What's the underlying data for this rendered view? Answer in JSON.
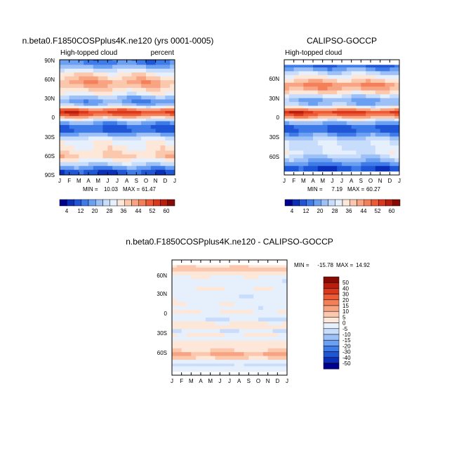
{
  "chart_data": [
    {
      "type": "heatmap",
      "title": "n.beta0.F1850COSPplus4K.ne120 (yrs 0001-0005)",
      "subtitle_left": "High-topped cloud",
      "subtitle_right": "percent",
      "x_ticks": [
        "J",
        "F",
        "M",
        "A",
        "M",
        "J",
        "J",
        "A",
        "S",
        "O",
        "N",
        "D",
        "J"
      ],
      "y_ticks": [
        "90N",
        "60N",
        "30N",
        "0",
        "30S",
        "60S",
        "90S"
      ],
      "ylim": [
        -90,
        90
      ],
      "stats": {
        "min_label": "MIN =",
        "min": "10.03",
        "max_label": "MAX =",
        "max": "61.47"
      },
      "colorbar": {
        "labels": [
          "4",
          "12",
          "20",
          "28",
          "36",
          "44",
          "52",
          "60"
        ]
      },
      "field": [
        {
          "lat": 88,
          "value": 12
        },
        {
          "lat": 84,
          "value": 12
        },
        {
          "lat": 78,
          "value": 18
        },
        {
          "lat": 72,
          "value": 26
        },
        {
          "lat": 66,
          "value": 32
        },
        {
          "lat": 60,
          "value": 36
        },
        {
          "lat": 54,
          "value": 40
        },
        {
          "lat": 48,
          "value": 38
        },
        {
          "lat": 42,
          "value": 34
        },
        {
          "lat": 36,
          "value": 30
        },
        {
          "lat": 30,
          "value": 22
        },
        {
          "lat": 24,
          "value": 18
        },
        {
          "lat": 18,
          "value": 22
        },
        {
          "lat": 14,
          "value": 32
        },
        {
          "lat": 10,
          "value": 46
        },
        {
          "lat": 6,
          "value": 54
        },
        {
          "lat": 2,
          "value": 50
        },
        {
          "lat": -2,
          "value": 40
        },
        {
          "lat": -6,
          "value": 30
        },
        {
          "lat": -10,
          "value": 20
        },
        {
          "lat": -16,
          "value": 14
        },
        {
          "lat": -22,
          "value": 14
        },
        {
          "lat": -28,
          "value": 22
        },
        {
          "lat": -34,
          "value": 30
        },
        {
          "lat": -40,
          "value": 34
        },
        {
          "lat": -48,
          "value": 36
        },
        {
          "lat": -56,
          "value": 38
        },
        {
          "lat": -62,
          "value": 40
        },
        {
          "lat": -68,
          "value": 34
        },
        {
          "lat": -74,
          "value": 28
        },
        {
          "lat": -80,
          "value": 20
        },
        {
          "lat": -86,
          "value": 12
        }
      ]
    },
    {
      "type": "heatmap",
      "title": "CALIPSO-GOCCP",
      "subtitle_left": "High-topped cloud",
      "x_ticks": [
        "J",
        "F",
        "M",
        "A",
        "M",
        "J",
        "J",
        "A",
        "S",
        "O",
        "N",
        "D",
        "J"
      ],
      "y_ticks": [
        "60N",
        "30N",
        "0",
        "30S",
        "60S"
      ],
      "ylim": [
        -82,
        82
      ],
      "stats": {
        "min_label": "MIN =",
        "min": "7.19",
        "max_label": "MAX =",
        "max": "60.27"
      },
      "colorbar": {
        "labels": [
          "4",
          "12",
          "20",
          "28",
          "36",
          "44",
          "52",
          "60"
        ]
      },
      "field": [
        {
          "lat": 80,
          "value": 10
        },
        {
          "lat": 74,
          "value": 16
        },
        {
          "lat": 68,
          "value": 24
        },
        {
          "lat": 62,
          "value": 30
        },
        {
          "lat": 56,
          "value": 36
        },
        {
          "lat": 50,
          "value": 42
        },
        {
          "lat": 44,
          "value": 40
        },
        {
          "lat": 38,
          "value": 34
        },
        {
          "lat": 32,
          "value": 26
        },
        {
          "lat": 26,
          "value": 20
        },
        {
          "lat": 20,
          "value": 22
        },
        {
          "lat": 14,
          "value": 32
        },
        {
          "lat": 10,
          "value": 44
        },
        {
          "lat": 6,
          "value": 54
        },
        {
          "lat": 2,
          "value": 50
        },
        {
          "lat": -2,
          "value": 42
        },
        {
          "lat": -6,
          "value": 32
        },
        {
          "lat": -10,
          "value": 22
        },
        {
          "lat": -16,
          "value": 14
        },
        {
          "lat": -22,
          "value": 14
        },
        {
          "lat": -28,
          "value": 20
        },
        {
          "lat": -34,
          "value": 26
        },
        {
          "lat": -40,
          "value": 30
        },
        {
          "lat": -48,
          "value": 30
        },
        {
          "lat": -56,
          "value": 32
        },
        {
          "lat": -62,
          "value": 28
        },
        {
          "lat": -68,
          "value": 24
        },
        {
          "lat": -74,
          "value": 18
        },
        {
          "lat": -80,
          "value": 12
        }
      ]
    },
    {
      "type": "heatmap",
      "title": "n.beta0.F1850COSPplus4K.ne120 - CALIPSO-GOCCP",
      "x_ticks": [
        "J",
        "F",
        "M",
        "A",
        "M",
        "J",
        "J",
        "A",
        "S",
        "O",
        "N",
        "D",
        "J"
      ],
      "y_ticks": [
        "60N",
        "30N",
        "0",
        "30S",
        "60S"
      ],
      "ylim": [
        -82,
        82
      ],
      "stats": {
        "min_label": "MIN =",
        "min": "-15.78",
        "max_label": "MAX =",
        "max": "14.92"
      },
      "colorbar": {
        "labels": [
          "50",
          "40",
          "30",
          "20",
          "15",
          "10",
          "5",
          "0",
          "-5",
          "-10",
          "-15",
          "-20",
          "-30",
          "-40",
          "-50"
        ]
      },
      "field": [
        {
          "lat": 80,
          "value": 3
        },
        {
          "lat": 74,
          "value": 6
        },
        {
          "lat": 68,
          "value": 2
        },
        {
          "lat": 62,
          "value": -2
        },
        {
          "lat": 56,
          "value": -4
        },
        {
          "lat": 50,
          "value": -3
        },
        {
          "lat": 44,
          "value": -1
        },
        {
          "lat": 38,
          "value": -3
        },
        {
          "lat": 32,
          "value": -4
        },
        {
          "lat": 26,
          "value": -2
        },
        {
          "lat": 20,
          "value": -1
        },
        {
          "lat": 14,
          "value": -3
        },
        {
          "lat": 8,
          "value": 1
        },
        {
          "lat": 2,
          "value": -2
        },
        {
          "lat": -4,
          "value": -4
        },
        {
          "lat": -10,
          "value": 2
        },
        {
          "lat": -16,
          "value": 3
        },
        {
          "lat": -22,
          "value": -3
        },
        {
          "lat": -28,
          "value": 2
        },
        {
          "lat": -34,
          "value": -2
        },
        {
          "lat": -40,
          "value": 3
        },
        {
          "lat": -46,
          "value": 4
        },
        {
          "lat": -52,
          "value": 6
        },
        {
          "lat": -58,
          "value": 12
        },
        {
          "lat": -64,
          "value": 7
        },
        {
          "lat": -70,
          "value": -2
        },
        {
          "lat": -76,
          "value": -5
        },
        {
          "lat": -80,
          "value": -2
        }
      ]
    }
  ],
  "colors": {
    "abs_scale": [
      "#00008f",
      "#0c2fb8",
      "#1f56d6",
      "#3e7be8",
      "#6b9ff2",
      "#9dc0f7",
      "#c8dcfb",
      "#e6effc",
      "#fde7d9",
      "#fbc8ae",
      "#f8a483",
      "#f4805a",
      "#ec5a36",
      "#d9381d",
      "#b81d0e",
      "#860b05"
    ],
    "diff_scale": [
      "#00008f",
      "#0c2fb8",
      "#1f56d6",
      "#3e7be8",
      "#6b9ff2",
      "#9dc0f7",
      "#c8dcfb",
      "#e6effc",
      "#fde7d9",
      "#fbc8ae",
      "#f8a483",
      "#f4805a",
      "#ec5a36",
      "#d9381d",
      "#b81d0e",
      "#860b05"
    ]
  }
}
